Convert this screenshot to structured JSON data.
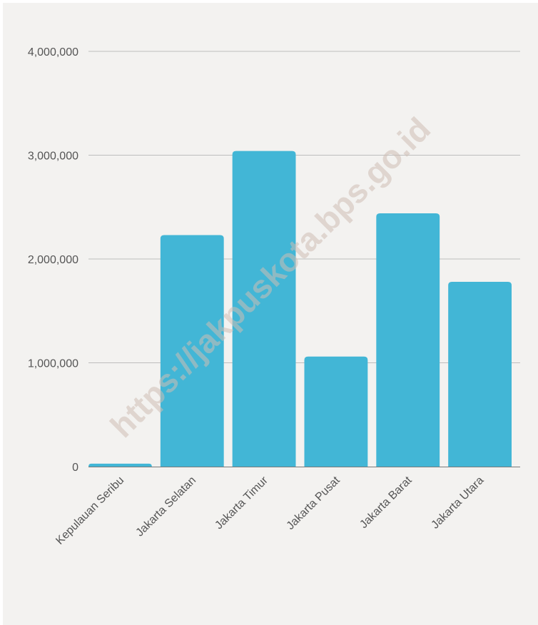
{
  "chart_data": {
    "type": "bar",
    "title": "",
    "xlabel": "",
    "ylabel": "",
    "categories": [
      "Kepulauan Seribu",
      "Jakarta Selatan",
      "Jakarta Timur",
      "Jakarta Pusat",
      "Jakarta Barat",
      "Jakarta Utara"
    ],
    "values": [
      28000,
      2230000,
      3040000,
      1060000,
      2440000,
      1780000
    ],
    "ylim": [
      0,
      4000000
    ],
    "yticks": [
      0,
      1000000,
      2000000,
      3000000,
      4000000
    ],
    "ytick_labels": [
      "0",
      "1,000,000",
      "2,000,000",
      "3,000,000",
      "4,000,000"
    ],
    "grid": true,
    "legend": "none",
    "bar_color": "#42b6d6",
    "watermark": "https://jakpuskota.bps.go.id"
  }
}
